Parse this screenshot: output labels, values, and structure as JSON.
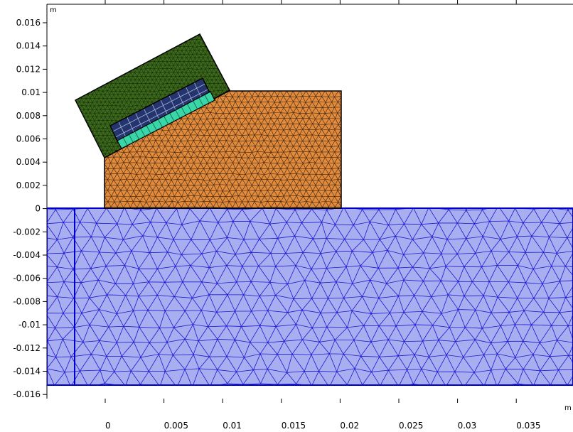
{
  "plot": {
    "y_unit": "m",
    "x_unit": "m",
    "y_ticks": [
      "0.016",
      "0.014",
      "0.012",
      "0.01",
      "0.008",
      "0.006",
      "0.004",
      "0.002",
      "0",
      "-0.002",
      "-0.004",
      "-0.006",
      "-0.008",
      "-0.01",
      "-0.012",
      "-0.014",
      "-0.016"
    ],
    "x_ticks": [
      "0",
      "0.005",
      "0.01",
      "0.015",
      "0.02",
      "0.025",
      "0.03",
      "0.035"
    ]
  },
  "domains": [
    {
      "name": "substrate",
      "color": "#a9aef0",
      "mesh_color": "#1a1ad0",
      "outline": "#0000cc"
    },
    {
      "name": "base-block",
      "color": "#e38b3c",
      "mesh_color": "#3a2410",
      "outline": "#000000"
    },
    {
      "name": "tilted-housing",
      "color": "#3d6a1c",
      "mesh_color": "#0f2205",
      "outline": "#000000"
    },
    {
      "name": "coil-block",
      "color": "#24346e",
      "mesh_color": "#aab4d8",
      "outline": "#000000"
    },
    {
      "name": "coil-strip",
      "color": "#39d6a8",
      "mesh_color": "#0c4a38",
      "outline": "#000000"
    }
  ]
}
